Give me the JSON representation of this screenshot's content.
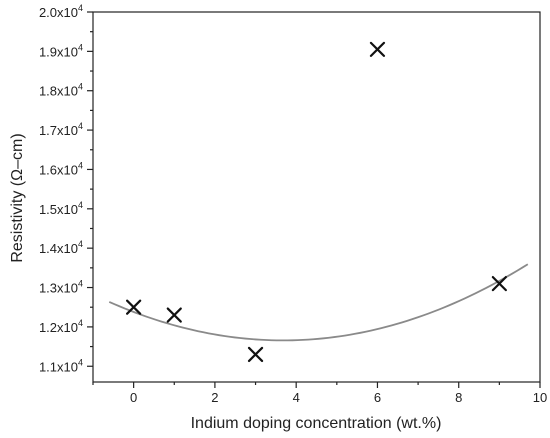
{
  "chart_data": {
    "type": "scatter",
    "title": "",
    "xlabel": "Indium doping concentration (wt.%)",
    "ylabel": "Resistivity (Ω–cm)",
    "xlim": [
      -1,
      10
    ],
    "ylim": [
      10600,
      20000
    ],
    "x_ticks": [
      0,
      2,
      4,
      6,
      8,
      10
    ],
    "y_ticks": [
      11000,
      12000,
      13000,
      14000,
      15000,
      16000,
      17000,
      18000,
      19000,
      20000
    ],
    "y_tick_mantissas": [
      "1.1",
      "1.2",
      "1.3",
      "1.4",
      "1.5",
      "1.6",
      "1.7",
      "1.8",
      "1.9",
      "2.0"
    ],
    "y_tick_base": "x10",
    "y_tick_exponent": "4",
    "grid": false,
    "marker": "x",
    "points": [
      {
        "x": 0,
        "y": 12500
      },
      {
        "x": 1,
        "y": 12300
      },
      {
        "x": 3,
        "y": 11300
      },
      {
        "x": 6,
        "y": 19050
      },
      {
        "x": 9,
        "y": 13100
      }
    ],
    "fit_curve": {
      "type": "quadratic",
      "x_range": [
        -0.6,
        9.7
      ],
      "coefficients": {
        "a": 53.4,
        "b": -393,
        "c": 12380
      }
    },
    "colors": {
      "marker": "#111111",
      "fit": "#8a8a8a",
      "axis": "#222222"
    }
  }
}
